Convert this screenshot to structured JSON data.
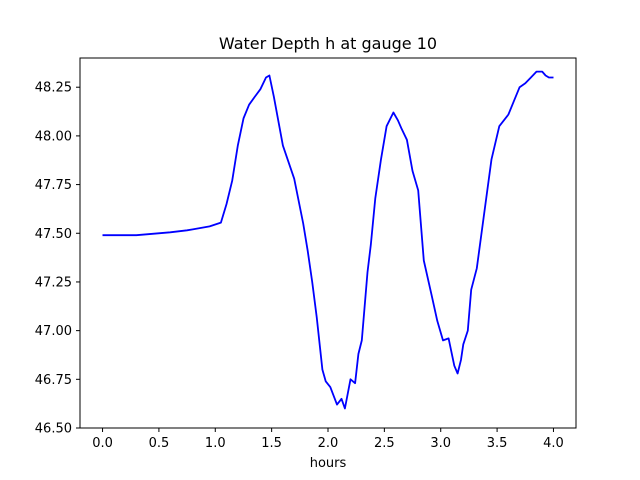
{
  "chart_data": {
    "type": "line",
    "title": "Water Depth h at gauge 10",
    "xlabel": "hours",
    "ylabel": "",
    "xlim": [
      -0.2,
      4.2
    ],
    "ylim": [
      46.5,
      48.4
    ],
    "grid": false,
    "legend": "none",
    "x_ticks": [
      0.0,
      0.5,
      1.0,
      1.5,
      2.0,
      2.5,
      3.0,
      3.5,
      4.0
    ],
    "x_tick_labels": [
      "0.0",
      "0.5",
      "1.0",
      "1.5",
      "2.0",
      "2.5",
      "3.0",
      "3.5",
      "4.0"
    ],
    "y_ticks": [
      46.5,
      46.75,
      47.0,
      47.25,
      47.5,
      47.75,
      48.0,
      48.25
    ],
    "y_tick_labels": [
      "46.50",
      "46.75",
      "47.00",
      "47.25",
      "47.50",
      "47.75",
      "48.00",
      "48.25"
    ],
    "series": [
      {
        "color": "#0000ff",
        "x": [
          0.0,
          0.3,
          0.6,
          0.75,
          0.8,
          0.95,
          1.05,
          1.1,
          1.15,
          1.2,
          1.25,
          1.3,
          1.35,
          1.4,
          1.45,
          1.48,
          1.52,
          1.6,
          1.7,
          1.78,
          1.82,
          1.86,
          1.9,
          1.95,
          1.98,
          2.02,
          2.08,
          2.12,
          2.15,
          2.2,
          2.24,
          2.27,
          2.3,
          2.35,
          2.38,
          2.42,
          2.47,
          2.52,
          2.58,
          2.62,
          2.65,
          2.7,
          2.75,
          2.8,
          2.85,
          2.92,
          2.97,
          3.02,
          3.07,
          3.12,
          3.15,
          3.18,
          3.2,
          3.24,
          3.27,
          3.32,
          3.38,
          3.45,
          3.52,
          3.6,
          3.65,
          3.7,
          3.75,
          3.8,
          3.85,
          3.9,
          3.93,
          3.96,
          4.0
        ],
        "y": [
          47.49,
          47.49,
          47.505,
          47.515,
          47.52,
          47.535,
          47.555,
          47.65,
          47.77,
          47.95,
          48.09,
          48.16,
          48.2,
          48.24,
          48.3,
          48.31,
          48.2,
          47.95,
          47.78,
          47.55,
          47.41,
          47.25,
          47.07,
          46.8,
          46.74,
          46.71,
          46.62,
          46.65,
          46.6,
          46.75,
          46.73,
          46.88,
          46.95,
          47.3,
          47.44,
          47.68,
          47.88,
          48.05,
          48.12,
          48.08,
          48.04,
          47.98,
          47.82,
          47.72,
          47.36,
          47.18,
          47.05,
          46.95,
          46.96,
          46.82,
          46.78,
          46.85,
          46.93,
          47.0,
          47.21,
          47.32,
          47.58,
          47.88,
          48.05,
          48.11,
          48.18,
          48.25,
          48.27,
          48.3,
          48.33,
          48.33,
          48.31,
          48.3,
          48.3
        ]
      }
    ]
  }
}
